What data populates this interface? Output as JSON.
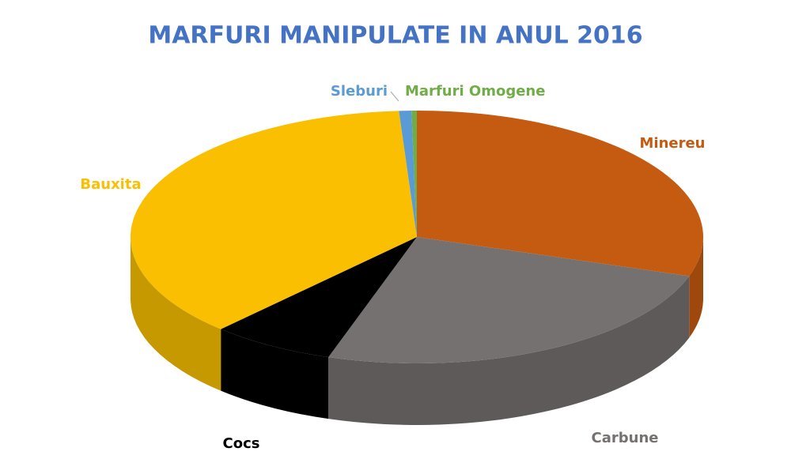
{
  "chart_data": {
    "type": "pie",
    "title": "MARFURI MANIPULATE IN ANUL 2016",
    "categories": [
      "Minereu",
      "Carbune",
      "Cocs",
      "Bauxita",
      "Sleburi",
      "Marfuri Omogene"
    ],
    "values": [
      30,
      25,
      7,
      37,
      0.7,
      0.3
    ],
    "colors": [
      "#c55a11",
      "#767171",
      "#000000",
      "#f9bf00",
      "#5b9bd5",
      "#70ad47"
    ]
  }
}
